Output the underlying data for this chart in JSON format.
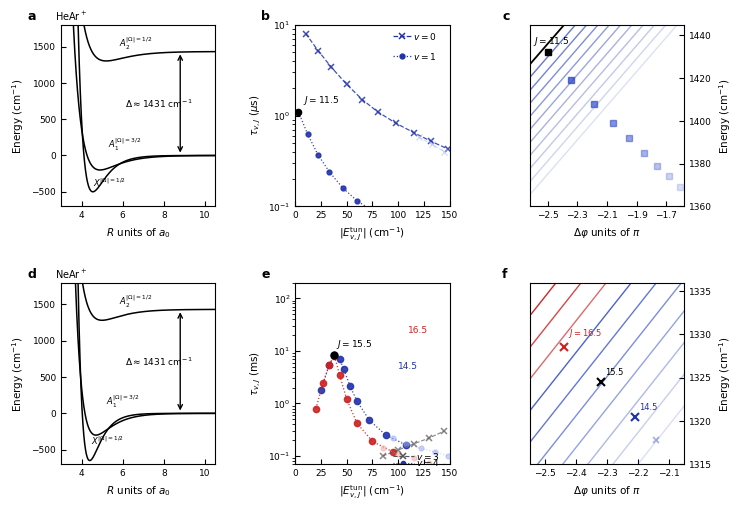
{
  "blue_dark": "#2233aa",
  "blue_med": "#4455cc",
  "blue_light": "#8899dd",
  "blue_vlight": "#aabbee",
  "red_dark": "#cc2222",
  "red_light": "#ee9999",
  "panel_a_yticks": [
    -500,
    0,
    500,
    1000,
    1500
  ],
  "panel_a_xticks": [
    4,
    6,
    8,
    10
  ],
  "panel_b_yticks": [
    0.1,
    1.0,
    10.0
  ],
  "panel_b_xticks": [
    0,
    25,
    50,
    75,
    100,
    125,
    150
  ],
  "panel_c_xticks": [
    -2.5,
    -2.3,
    -2.1,
    -1.9,
    -1.7
  ],
  "panel_c_yticks": [
    1360,
    1380,
    1400,
    1420,
    1440
  ],
  "panel_e_yticks": [
    0.1,
    1.0,
    10.0,
    100.0
  ],
  "panel_e_xticks": [
    0,
    25,
    50,
    75,
    100,
    125,
    150
  ],
  "panel_f_xticks": [
    -2.5,
    -2.4,
    -2.3,
    -2.2,
    -2.1
  ],
  "panel_f_yticks": [
    1315,
    1320,
    1325,
    1330,
    1335
  ]
}
